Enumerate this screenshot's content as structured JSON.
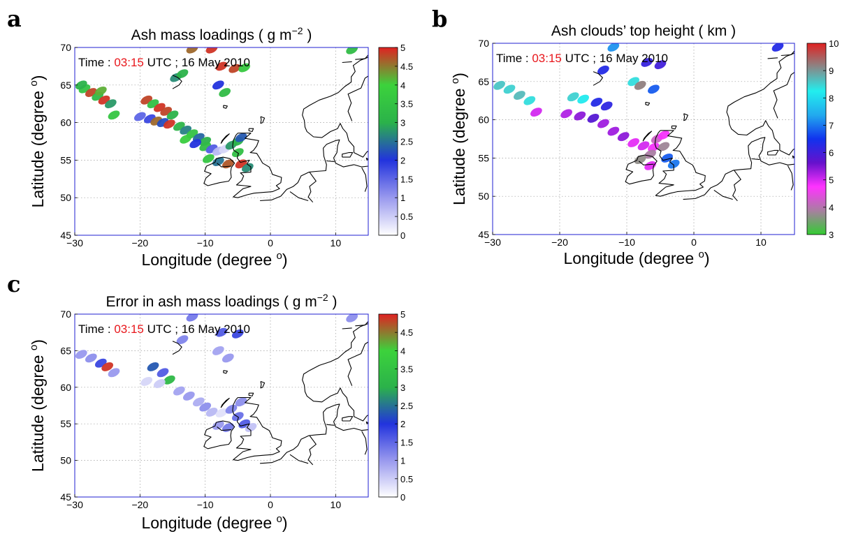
{
  "chart_data": [
    {
      "panel": "a",
      "type": "map-scatter",
      "title": "Ash mass loadings ( g m",
      "title_superscript": "−2",
      "title_suffix": " )",
      "time_label": "Time :",
      "time_value": "03:15",
      "time_suffix": " UTC ; 16 May 2010",
      "xlabel": "Longitude (degree ",
      "xlabel_sup": "o",
      "xlabel_suffix": ")",
      "ylabel": "Latitude (degree ",
      "ylabel_sup": "o",
      "ylabel_suffix": ")",
      "xlim": [
        -30,
        15
      ],
      "ylim": [
        45,
        70
      ],
      "xticks": [
        -30,
        -20,
        -10,
        0,
        10
      ],
      "yticks": [
        45,
        50,
        55,
        60,
        65,
        70
      ],
      "grid": true,
      "colorbar": {
        "min": 0,
        "max": 5,
        "ticks": [
          "0",
          "0.5",
          "1",
          "1.5",
          "2",
          "2.5",
          "3",
          "3.5",
          "4",
          "4.5",
          "5"
        ],
        "colors": [
          "#ffffff",
          "#9999ee",
          "#2233dd",
          "#2bb24a",
          "#3cd23c",
          "#e02222"
        ]
      },
      "points": [
        {
          "lon": -28.5,
          "lat": 64.5,
          "v": 3.5
        },
        {
          "lon": -27.5,
          "lat": 64.0,
          "v": 4.8
        },
        {
          "lon": -26.5,
          "lat": 63.5,
          "v": 3.2
        },
        {
          "lon": -25.5,
          "lat": 63.0,
          "v": 4.9
        },
        {
          "lon": -24.5,
          "lat": 62.5,
          "v": 2.8
        },
        {
          "lon": -24.0,
          "lat": 61.0,
          "v": 3.6
        },
        {
          "lon": -29.0,
          "lat": 65.0,
          "v": 3.0
        },
        {
          "lon": -26.0,
          "lat": 64.2,
          "v": 4.2
        },
        {
          "lon": -19.0,
          "lat": 63.0,
          "v": 4.8
        },
        {
          "lon": -18.0,
          "lat": 62.5,
          "v": 3.4
        },
        {
          "lon": -17.0,
          "lat": 62.0,
          "v": 4.9
        },
        {
          "lon": -16.0,
          "lat": 61.5,
          "v": 4.8
        },
        {
          "lon": -15.0,
          "lat": 61.0,
          "v": 3.0
        },
        {
          "lon": -20.0,
          "lat": 60.8,
          "v": 1.5
        },
        {
          "lon": -18.5,
          "lat": 60.5,
          "v": 1.8
        },
        {
          "lon": -17.5,
          "lat": 60.2,
          "v": 4.6
        },
        {
          "lon": -16.5,
          "lat": 60.0,
          "v": 2.2
        },
        {
          "lon": -15.5,
          "lat": 59.8,
          "v": 4.9
        },
        {
          "lon": -14.0,
          "lat": 59.5,
          "v": 3.1
        },
        {
          "lon": -13.0,
          "lat": 59.0,
          "v": 2.6
        },
        {
          "lon": -12.0,
          "lat": 58.5,
          "v": 3.5
        },
        {
          "lon": -11.0,
          "lat": 58.0,
          "v": 2.4
        },
        {
          "lon": -10.0,
          "lat": 57.5,
          "v": 3.0
        },
        {
          "lon": -13.0,
          "lat": 57.8,
          "v": 3.8
        },
        {
          "lon": -11.5,
          "lat": 57.2,
          "v": 2.0
        },
        {
          "lon": -10.0,
          "lat": 56.8,
          "v": 3.3
        },
        {
          "lon": -9.0,
          "lat": 56.5,
          "v": 1.6
        },
        {
          "lon": -8.0,
          "lat": 56.2,
          "v": 0.7
        },
        {
          "lon": -7.0,
          "lat": 56.5,
          "v": 0.4
        },
        {
          "lon": -6.0,
          "lat": 57.0,
          "v": 2.8
        },
        {
          "lon": -5.0,
          "lat": 57.5,
          "v": 3.0
        },
        {
          "lon": -4.5,
          "lat": 58.0,
          "v": 2.3
        },
        {
          "lon": -5.0,
          "lat": 56.0,
          "v": 3.4
        },
        {
          "lon": -9.5,
          "lat": 55.2,
          "v": 3.6
        },
        {
          "lon": -8.0,
          "lat": 54.8,
          "v": 2.5
        },
        {
          "lon": -6.5,
          "lat": 54.5,
          "v": 4.7
        },
        {
          "lon": -4.5,
          "lat": 54.5,
          "v": 4.9
        },
        {
          "lon": -3.5,
          "lat": 54.0,
          "v": 2.7
        },
        {
          "lon": -7.5,
          "lat": 67.5,
          "v": 4.9
        },
        {
          "lon": -5.5,
          "lat": 67.2,
          "v": 4.8
        },
        {
          "lon": -4.0,
          "lat": 67.3,
          "v": 3.7
        },
        {
          "lon": -9.0,
          "lat": 69.8,
          "v": 4.9
        },
        {
          "lon": -12.0,
          "lat": 69.8,
          "v": 4.6
        },
        {
          "lon": -14.5,
          "lat": 66.0,
          "v": 2.7
        },
        {
          "lon": -13.5,
          "lat": 66.5,
          "v": 3.0
        },
        {
          "lon": -8.0,
          "lat": 65.0,
          "v": 2.0
        },
        {
          "lon": -7.0,
          "lat": 64.0,
          "v": 3.3
        },
        {
          "lon": 12.5,
          "lat": 69.7,
          "v": 3.3
        }
      ]
    },
    {
      "panel": "b",
      "type": "map-scatter",
      "title": "Ash clouds’ top height ( km )",
      "time_label": "Time :",
      "time_value": "03:15",
      "time_suffix": " UTC ; 16 May 2010",
      "xlabel": "Longitude (degree ",
      "xlabel_sup": "o",
      "xlabel_suffix": ")",
      "ylabel": "Latitude (degree ",
      "ylabel_sup": "o",
      "ylabel_suffix": ")",
      "xlim": [
        -30,
        15
      ],
      "ylim": [
        45,
        70
      ],
      "xticks": [
        -30,
        -20,
        -10,
        0,
        10
      ],
      "yticks": [
        45,
        50,
        55,
        60,
        65,
        70
      ],
      "grid": true,
      "colorbar": {
        "min": 3,
        "max": 10,
        "ticks": [
          "3",
          "4",
          "5",
          "6",
          "7",
          "8",
          "9",
          "10"
        ],
        "colors": [
          "#33cc33",
          "#a87fa0",
          "#ff33ff",
          "#6611cc",
          "#1133ee",
          "#22aaee",
          "#22eeee",
          "#888888",
          "#e02222"
        ]
      },
      "points": [
        {
          "lon": -29.0,
          "lat": 64.5,
          "v": 8.6
        },
        {
          "lon": -27.5,
          "lat": 64.0,
          "v": 8.5
        },
        {
          "lon": -26.0,
          "lat": 63.2,
          "v": 8.7
        },
        {
          "lon": -24.5,
          "lat": 62.5,
          "v": 8.4
        },
        {
          "lon": -23.5,
          "lat": 61.0,
          "v": 5.0
        },
        {
          "lon": -18.0,
          "lat": 63.0,
          "v": 8.5
        },
        {
          "lon": -16.5,
          "lat": 62.7,
          "v": 8.2
        },
        {
          "lon": -14.5,
          "lat": 62.3,
          "v": 6.3
        },
        {
          "lon": -13.0,
          "lat": 61.8,
          "v": 6.2
        },
        {
          "lon": -19.0,
          "lat": 60.8,
          "v": 5.2
        },
        {
          "lon": -17.0,
          "lat": 60.5,
          "v": 5.4
        },
        {
          "lon": -15.0,
          "lat": 60.2,
          "v": 5.8
        },
        {
          "lon": -13.5,
          "lat": 59.5,
          "v": 5.3
        },
        {
          "lon": -12.0,
          "lat": 58.5,
          "v": 5.3
        },
        {
          "lon": -10.5,
          "lat": 57.8,
          "v": 5.4
        },
        {
          "lon": -9.0,
          "lat": 57.0,
          "v": 4.9
        },
        {
          "lon": -7.5,
          "lat": 56.6,
          "v": 5.0
        },
        {
          "lon": -6.0,
          "lat": 56.4,
          "v": 4.8
        },
        {
          "lon": -5.5,
          "lat": 57.5,
          "v": 4.2
        },
        {
          "lon": -4.5,
          "lat": 56.5,
          "v": 3.8
        },
        {
          "lon": -6.5,
          "lat": 55.5,
          "v": 3.9
        },
        {
          "lon": -8.0,
          "lat": 54.8,
          "v": 3.7
        },
        {
          "lon": -4.0,
          "lat": 55.0,
          "v": 6.8
        },
        {
          "lon": -3.0,
          "lat": 54.2,
          "v": 7.0
        },
        {
          "lon": -6.5,
          "lat": 54.0,
          "v": 4.9
        },
        {
          "lon": -4.5,
          "lat": 58.0,
          "v": 4.8
        },
        {
          "lon": -12.0,
          "lat": 69.5,
          "v": 7.2
        },
        {
          "lon": -7.0,
          "lat": 67.5,
          "v": 6.1
        },
        {
          "lon": -5.0,
          "lat": 67.2,
          "v": 6.0
        },
        {
          "lon": -13.5,
          "lat": 66.5,
          "v": 6.3
        },
        {
          "lon": -9.0,
          "lat": 65.0,
          "v": 8.4
        },
        {
          "lon": -8.0,
          "lat": 64.5,
          "v": 9.2
        },
        {
          "lon": -6.0,
          "lat": 64.0,
          "v": 6.8
        },
        {
          "lon": 12.5,
          "lat": 69.5,
          "v": 6.3
        }
      ]
    },
    {
      "panel": "c",
      "type": "map-scatter",
      "title": "Error in ash mass loadings ( g m",
      "title_superscript": "−2",
      "title_suffix": " )",
      "time_label": "Time :",
      "time_value": "03:15",
      "time_suffix": " UTC ; 16 May 2010",
      "xlabel": "Longitude (degree ",
      "xlabel_sup": "o",
      "xlabel_suffix": ")",
      "ylabel": "Latitude (degree ",
      "ylabel_sup": "o",
      "ylabel_suffix": ")",
      "xlim": [
        -30,
        15
      ],
      "ylim": [
        45,
        70
      ],
      "xticks": [
        -30,
        -20,
        -10,
        0,
        10
      ],
      "yticks": [
        45,
        50,
        55,
        60,
        65,
        70
      ],
      "grid": true,
      "colorbar": {
        "min": 0,
        "max": 5,
        "ticks": [
          "0",
          "0.5",
          "1",
          "1.5",
          "2",
          "2.5",
          "3",
          "3.5",
          "4",
          "4.5",
          "5"
        ],
        "colors": [
          "#ffffff",
          "#9999ee",
          "#2233dd",
          "#2bb24a",
          "#3cd23c",
          "#e02222"
        ]
      },
      "points": [
        {
          "lon": -29.0,
          "lat": 64.5,
          "v": 1.0
        },
        {
          "lon": -27.5,
          "lat": 64.0,
          "v": 1.1
        },
        {
          "lon": -26.0,
          "lat": 63.3,
          "v": 1.8
        },
        {
          "lon": -25.0,
          "lat": 62.8,
          "v": 4.9
        },
        {
          "lon": -24.0,
          "lat": 62.0,
          "v": 1.0
        },
        {
          "lon": -18.0,
          "lat": 62.8,
          "v": 2.3
        },
        {
          "lon": -16.5,
          "lat": 62.0,
          "v": 1.6
        },
        {
          "lon": -15.5,
          "lat": 61.0,
          "v": 3.2
        },
        {
          "lon": -17.0,
          "lat": 60.5,
          "v": 0.5
        },
        {
          "lon": -19.0,
          "lat": 60.8,
          "v": 0.4
        },
        {
          "lon": -14.0,
          "lat": 59.5,
          "v": 0.9
        },
        {
          "lon": -12.5,
          "lat": 58.8,
          "v": 1.0
        },
        {
          "lon": -11.0,
          "lat": 58.0,
          "v": 0.8
        },
        {
          "lon": -10.0,
          "lat": 57.3,
          "v": 1.1
        },
        {
          "lon": -9.0,
          "lat": 56.6,
          "v": 0.7
        },
        {
          "lon": -7.5,
          "lat": 56.5,
          "v": 0.3
        },
        {
          "lon": -6.0,
          "lat": 57.0,
          "v": 1.2
        },
        {
          "lon": -5.0,
          "lat": 56.0,
          "v": 1.4
        },
        {
          "lon": -4.0,
          "lat": 55.0,
          "v": 1.6
        },
        {
          "lon": -6.5,
          "lat": 54.5,
          "v": 1.3
        },
        {
          "lon": -8.0,
          "lat": 54.8,
          "v": 1.0
        },
        {
          "lon": -3.0,
          "lat": 54.5,
          "v": 0.6
        },
        {
          "lon": -4.5,
          "lat": 58.0,
          "v": 1.1
        },
        {
          "lon": -7.5,
          "lat": 67.5,
          "v": 1.6
        },
        {
          "lon": -5.0,
          "lat": 67.3,
          "v": 1.8
        },
        {
          "lon": -12.0,
          "lat": 69.6,
          "v": 1.3
        },
        {
          "lon": -13.5,
          "lat": 66.5,
          "v": 1.2
        },
        {
          "lon": -8.0,
          "lat": 65.0,
          "v": 0.9
        },
        {
          "lon": -6.5,
          "lat": 64.0,
          "v": 1.0
        },
        {
          "lon": 12.5,
          "lat": 69.5,
          "v": 1.1
        }
      ]
    }
  ]
}
